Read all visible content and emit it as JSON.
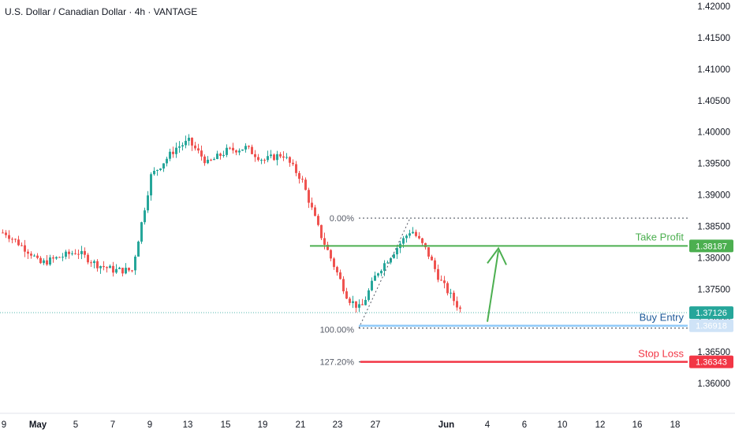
{
  "chart_title": "U.S. Dollar / Canadian Dollar · 4h · VANTAGE",
  "colors": {
    "up": "#26a69a",
    "down": "#ef5350",
    "take_profit": "#4caf50",
    "buy_entry": "#90caf9",
    "stop_loss": "#f23645",
    "current_price": "#26a69a"
  },
  "chart_data": {
    "type": "candlestick",
    "symbol": "U.S. Dollar / Canadian Dollar",
    "timeframe": "4h",
    "source": "VANTAGE",
    "ylim": [
      1.3565,
      1.4205
    ],
    "y_ticks": [
      "1.42000",
      "1.41500",
      "1.41000",
      "1.40500",
      "1.40000",
      "1.39500",
      "1.39000",
      "1.38500",
      "1.38000",
      "1.37500",
      "1.37000",
      "1.36500",
      "1.36000"
    ],
    "x_ticks": [
      "9",
      "May",
      "5",
      "7",
      "9",
      "13",
      "15",
      "19",
      "21",
      "23",
      "27",
      "Jun",
      "4",
      "6",
      "10",
      "12",
      "16",
      "18"
    ],
    "price_path": [
      {
        "date": "Apr 29",
        "close": 1.384
      },
      {
        "date": "May 1",
        "close": 1.3805
      },
      {
        "date": "May 2",
        "close": 1.379
      },
      {
        "date": "May 5",
        "close": 1.381
      },
      {
        "date": "May 6",
        "close": 1.379
      },
      {
        "date": "May 7",
        "close": 1.378
      },
      {
        "date": "May 8",
        "close": 1.378
      },
      {
        "date": "May 9",
        "close": 1.393
      },
      {
        "date": "May 12",
        "close": 1.3975
      },
      {
        "date": "May 13",
        "close": 1.3985
      },
      {
        "date": "May 14",
        "close": 1.395
      },
      {
        "date": "May 15",
        "close": 1.397
      },
      {
        "date": "May 16",
        "close": 1.3975
      },
      {
        "date": "May 19",
        "close": 1.3955
      },
      {
        "date": "May 20",
        "close": 1.3965
      },
      {
        "date": "May 21",
        "close": 1.3925
      },
      {
        "date": "May 22",
        "close": 1.384
      },
      {
        "date": "May 23",
        "close": 1.3735
      },
      {
        "date": "May 26",
        "close": 1.3718
      },
      {
        "date": "May 27",
        "close": 1.3775
      },
      {
        "date": "May 28",
        "close": 1.3845
      },
      {
        "date": "May 29",
        "close": 1.381
      },
      {
        "date": "May 30",
        "close": 1.3765
      },
      {
        "date": "Jun 2",
        "close": 1.3712
      }
    ],
    "levels": [
      {
        "name": "Take Profit",
        "price": "1.38187"
      },
      {
        "name": "Buy Entry",
        "price": "1.36918"
      },
      {
        "name": "Stop Loss",
        "price": "1.36343"
      },
      {
        "name": "current",
        "price": "1.37126"
      }
    ],
    "fibonacci": [
      {
        "label": "0.00%",
        "price": 1.3863
      },
      {
        "label": "100.00%",
        "price": 1.3688
      },
      {
        "label": "127.20%",
        "price": 1.36343
      }
    ],
    "annotations": [
      "Take Profit",
      "Buy Entry",
      "Stop Loss"
    ]
  }
}
